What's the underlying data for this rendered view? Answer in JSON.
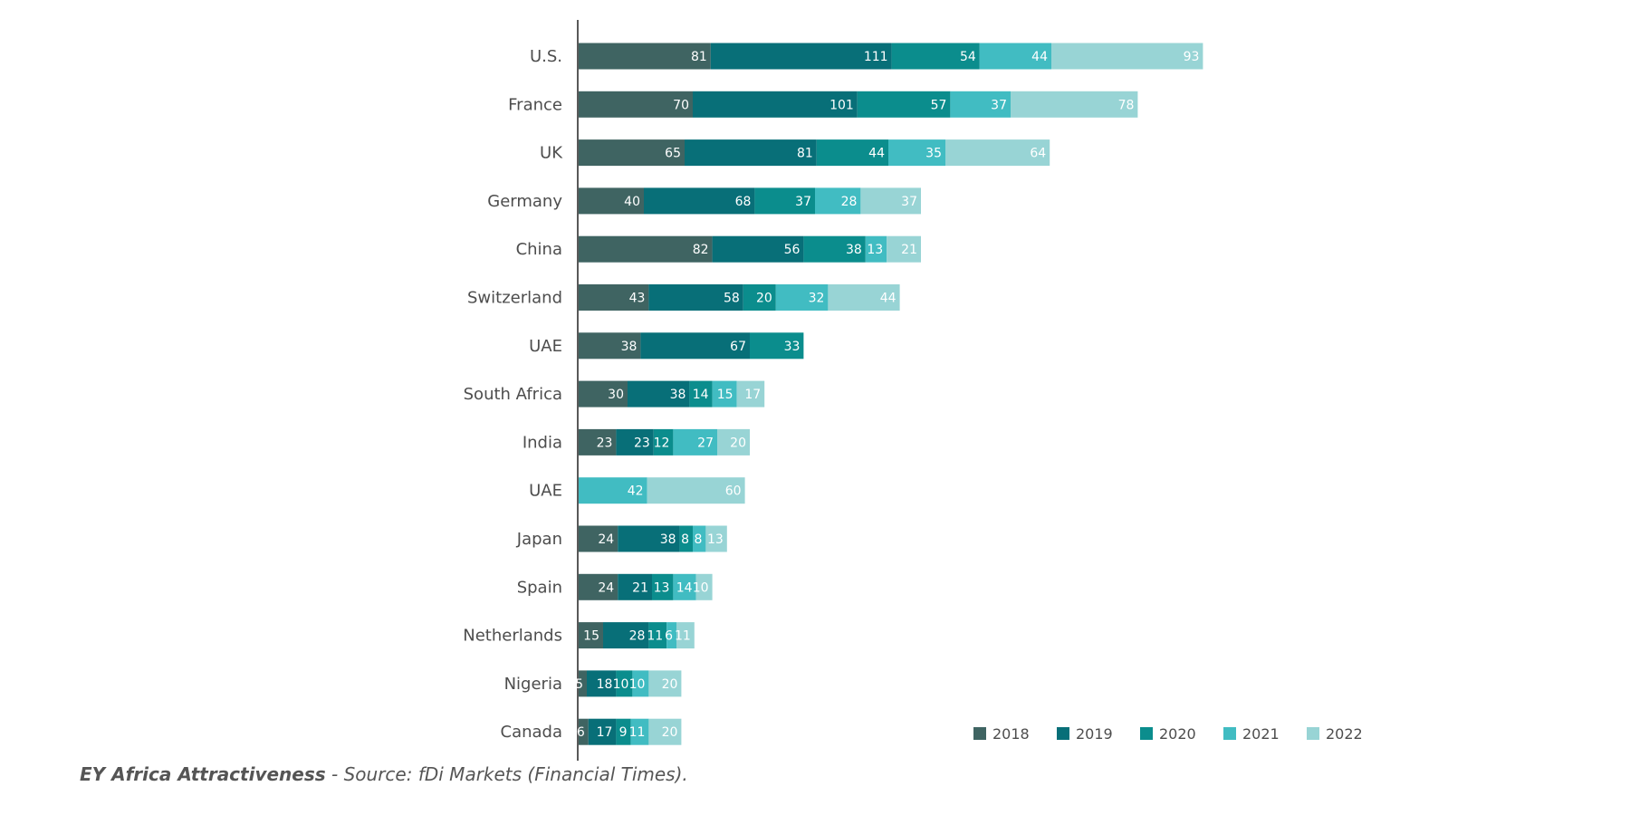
{
  "chart_data": {
    "type": "bar",
    "orientation": "horizontal",
    "stacked": true,
    "categories": [
      "U.S.",
      "France",
      "UK",
      "Germany",
      "China",
      "Switzerland",
      "UAE",
      "South Africa",
      "India",
      "UAE",
      "Japan",
      "Spain",
      "Netherlands",
      "Nigeria",
      "Canada"
    ],
    "series": [
      {
        "name": "2018",
        "color": "#3f6462",
        "values": [
          81,
          70,
          65,
          40,
          82,
          43,
          38,
          30,
          23,
          0,
          24,
          24,
          15,
          5,
          6
        ]
      },
      {
        "name": "2019",
        "color": "#086f78",
        "values": [
          111,
          101,
          81,
          68,
          56,
          58,
          67,
          38,
          23,
          0,
          38,
          21,
          28,
          18,
          17
        ]
      },
      {
        "name": "2020",
        "color": "#0b8d8d",
        "values": [
          54,
          57,
          44,
          37,
          38,
          20,
          33,
          14,
          12,
          0,
          8,
          13,
          11,
          10,
          9
        ]
      },
      {
        "name": "2021",
        "color": "#41bcc2",
        "values": [
          44,
          37,
          35,
          28,
          13,
          32,
          0,
          15,
          27,
          42,
          8,
          14,
          6,
          10,
          11
        ]
      },
      {
        "name": "2022",
        "color": "#98d4d5",
        "values": [
          93,
          78,
          64,
          37,
          21,
          44,
          0,
          17,
          20,
          60,
          13,
          10,
          11,
          20,
          20
        ]
      }
    ],
    "legend_position": "bottom-right",
    "grid": false
  },
  "source": {
    "brand": "EY Africa Attractiveness",
    "text": " - Source: fDi Markets (Financial Times)."
  }
}
